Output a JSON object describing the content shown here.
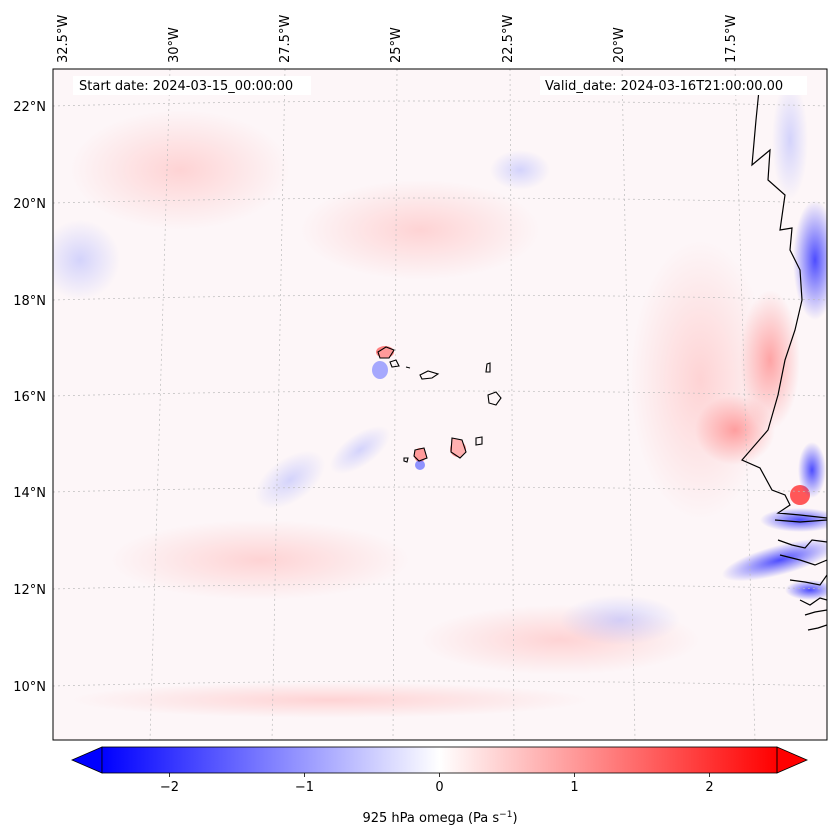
{
  "map": {
    "start_label": "Start date: 2024-03-15_00:00:00",
    "valid_label": "Valid_date: 2024-03-16T21:00:00.00",
    "lon_labels": [
      "32.5°W",
      "30°W",
      "27.5°W",
      "25°W",
      "22.5°W",
      "20°W",
      "17.5°W"
    ],
    "lat_labels": [
      "22°N",
      "20°N",
      "18°N",
      "16°N",
      "14°N",
      "12°N",
      "10°N"
    ]
  },
  "colorbar": {
    "ticks": [
      "−2",
      "−1",
      "0",
      "1",
      "2"
    ],
    "tick_values": [
      -2,
      -1,
      0,
      1,
      2
    ],
    "range": [
      -2.5,
      2.5
    ],
    "label": "925 hPa omega (Pa s",
    "label_sup": "−1",
    "label_close": ")",
    "low_color": "#0000ff",
    "mid_color": "#ffffff",
    "high_color": "#ff0000"
  }
}
